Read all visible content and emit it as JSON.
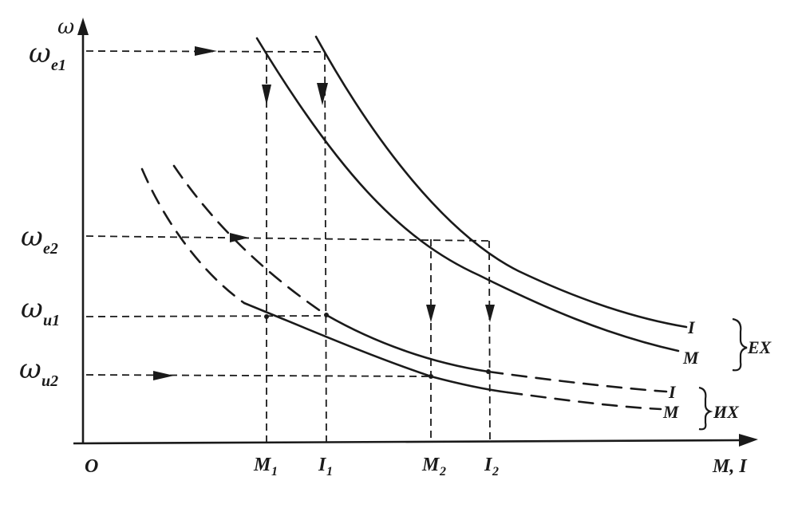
{
  "axes": {
    "y_label": "ω",
    "x_label": "M, I",
    "origin_label": "O"
  },
  "y_ticks": [
    {
      "symbol": "ω",
      "sub": "e1"
    },
    {
      "symbol": "ω",
      "sub": "e2"
    },
    {
      "symbol": "ω",
      "sub": "u1"
    },
    {
      "symbol": "ω",
      "sub": "u2"
    }
  ],
  "x_ticks": [
    {
      "symbol": "M",
      "sub": "1"
    },
    {
      "symbol": "I",
      "sub": "1"
    },
    {
      "symbol": "M",
      "sub": "2"
    },
    {
      "symbol": "I",
      "sub": "2"
    }
  ],
  "curves": {
    "ex_i": "I",
    "ex_m": "M",
    "ix_i": "I",
    "ix_m": "M"
  },
  "groups": {
    "ex": "EX",
    "ix": "ИX"
  }
}
